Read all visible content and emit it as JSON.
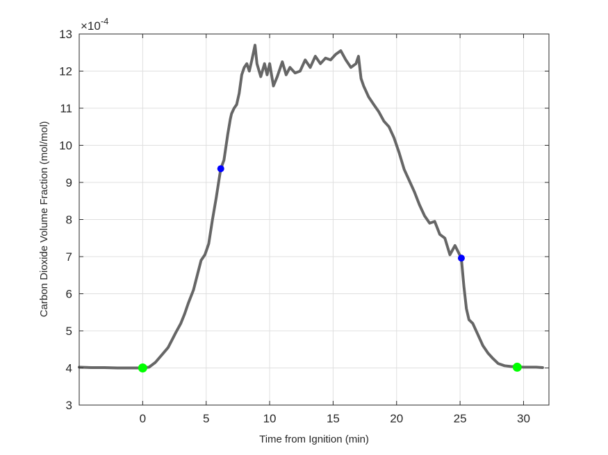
{
  "chart_data": {
    "type": "line",
    "title": "",
    "xlabel": "Time from Ignition (min)",
    "ylabel": "Carbon Dioxide Volume Fraction (mol/mol)",
    "y_exponent_label": "×10^-4",
    "y_multiplier": 0.0001,
    "xlim": [
      -5,
      32
    ],
    "ylim": [
      3,
      13
    ],
    "x_ticks": [
      0,
      5,
      10,
      15,
      20,
      25,
      30
    ],
    "y_ticks": [
      3,
      4,
      5,
      6,
      7,
      8,
      9,
      10,
      11,
      12,
      13
    ],
    "grid": true,
    "legend": null,
    "series": [
      {
        "name": "CO2 volume fraction",
        "color": "#666666",
        "x": [
          -5,
          -4,
          -3,
          -2,
          -1,
          0,
          0.5,
          1,
          1.5,
          2,
          2.3,
          2.6,
          3,
          3.3,
          3.6,
          4,
          4.3,
          4.6,
          4.9,
          5.2,
          5.5,
          5.8,
          6.0,
          6.15,
          6.4,
          6.7,
          6.9,
          7.0,
          7.2,
          7.4,
          7.6,
          7.8,
          8.0,
          8.2,
          8.4,
          8.6,
          8.85,
          9.0,
          9.3,
          9.6,
          9.8,
          10.0,
          10.3,
          10.6,
          11.0,
          11.3,
          11.6,
          12.0,
          12.4,
          12.8,
          13.2,
          13.6,
          14.0,
          14.4,
          14.8,
          15.2,
          15.6,
          16.0,
          16.4,
          16.8,
          17.0,
          17.2,
          17.4,
          17.8,
          18.2,
          18.6,
          19.0,
          19.4,
          19.8,
          20.2,
          20.6,
          21.0,
          21.4,
          21.8,
          22.2,
          22.6,
          23.0,
          23.4,
          23.8,
          24.2,
          24.6,
          25.1,
          25.3,
          25.5,
          25.7,
          26.0,
          26.4,
          26.8,
          27.2,
          27.6,
          28.0,
          28.5,
          29.0,
          29.5,
          30.0,
          30.5,
          31.0,
          31.5
        ],
        "y": [
          4.02,
          4.01,
          4.01,
          4.0,
          4.0,
          4.0,
          4.02,
          4.15,
          4.35,
          4.55,
          4.75,
          4.95,
          5.2,
          5.45,
          5.75,
          6.1,
          6.5,
          6.9,
          7.05,
          7.35,
          8.0,
          8.6,
          9.05,
          9.37,
          9.6,
          10.3,
          10.7,
          10.85,
          11.0,
          11.1,
          11.4,
          11.9,
          12.1,
          12.2,
          12.0,
          12.3,
          12.7,
          12.2,
          11.85,
          12.2,
          11.9,
          12.2,
          11.6,
          11.85,
          12.25,
          11.9,
          12.1,
          11.95,
          12.0,
          12.3,
          12.1,
          12.4,
          12.2,
          12.35,
          12.3,
          12.45,
          12.55,
          12.3,
          12.1,
          12.2,
          12.4,
          11.8,
          11.6,
          11.3,
          11.1,
          10.9,
          10.65,
          10.5,
          10.2,
          9.8,
          9.35,
          9.05,
          8.75,
          8.4,
          8.1,
          7.9,
          7.95,
          7.6,
          7.5,
          7.05,
          7.3,
          6.96,
          6.2,
          5.6,
          5.3,
          5.2,
          4.9,
          4.6,
          4.4,
          4.25,
          4.12,
          4.06,
          4.04,
          4.03,
          4.02,
          4.02,
          4.02,
          4.01
        ]
      }
    ],
    "markers": [
      {
        "name": "ignition-start",
        "x": 0,
        "y": 4.0,
        "color": "#00ff00",
        "size": "large"
      },
      {
        "name": "plateau-start",
        "x": 6.15,
        "y": 9.37,
        "color": "#0000ff",
        "size": "small"
      },
      {
        "name": "decay-start",
        "x": 25.1,
        "y": 6.96,
        "color": "#0000ff",
        "size": "small"
      },
      {
        "name": "return-to-baseline",
        "x": 29.5,
        "y": 4.02,
        "color": "#00ff00",
        "size": "large"
      }
    ]
  },
  "axes": {
    "x_tick_labels": [
      "0",
      "5",
      "10",
      "15",
      "20",
      "25",
      "30"
    ],
    "y_tick_labels": [
      "3",
      "4",
      "5",
      "6",
      "7",
      "8",
      "9",
      "10",
      "11",
      "12",
      "13"
    ],
    "exponent_base": "×10",
    "exponent_power": "-4"
  }
}
